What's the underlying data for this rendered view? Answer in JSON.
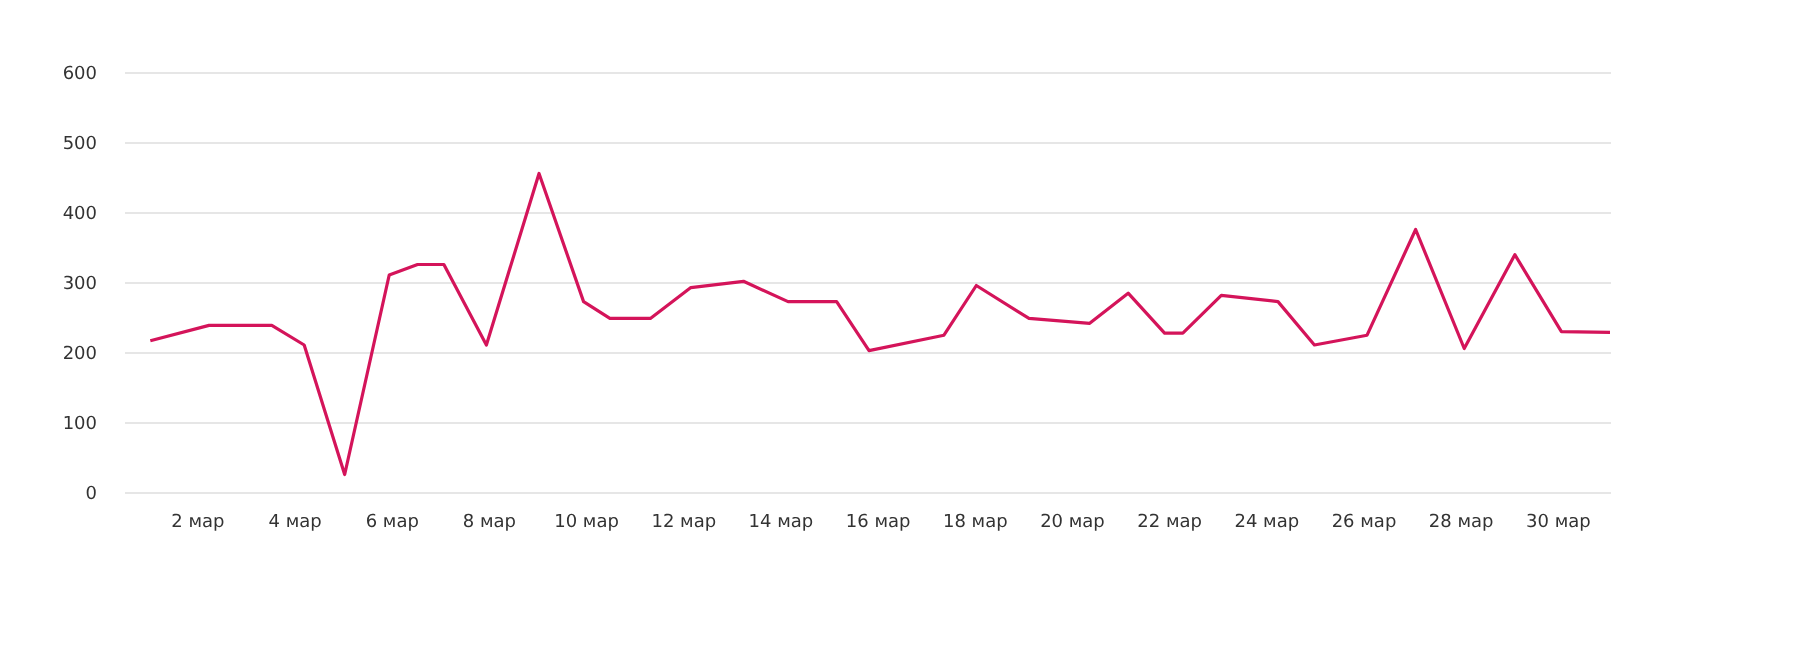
{
  "chart_data": {
    "type": "line",
    "x": [
      "--03-01T01:00",
      "--03-02T06:00",
      "--03-03T13:00",
      "--03-04T05:00",
      "--03-05T01:00",
      "--03-05T23:00",
      "--03-06T13:00",
      "--03-07T02:00",
      "--03-07T23:00",
      "--03-09T01:00",
      "--03-09T23:00",
      "--03-10T12:00",
      "--03-11T08:00",
      "--03-12T04:00",
      "--03-13T06:00",
      "--03-14T04:00",
      "--03-15T04:00",
      "--03-15T20:00",
      "--03-17T09:00",
      "--03-18T01:00",
      "--03-19T03:00",
      "--03-20T09:00",
      "--03-21T04:00",
      "--03-21T22:00",
      "--03-22T07:00",
      "--03-23T02:00",
      "--03-24T06:00",
      "--03-25T00:00",
      "--03-26T02:00",
      "--03-27T02:00",
      "--03-28T02:00",
      "--03-29T03:00",
      "--03-30T02:00",
      "--03-31T02:00"
    ],
    "series": [
      {
        "color": "#d4145a",
        "values": [
          216,
          238,
          238,
          210,
          25,
          310,
          325,
          325,
          210,
          455,
          272,
          248,
          248,
          292,
          301,
          272,
          272,
          202,
          224,
          295,
          248,
          241,
          284,
          227,
          227,
          281,
          272,
          210,
          224,
          375,
          205,
          339,
          229,
          228
        ]
      }
    ],
    "xticks": [
      {
        "value": "--03-02T00:00",
        "label": "2 мар"
      },
      {
        "value": "--03-04T00:00",
        "label": "4 мар"
      },
      {
        "value": "--03-06T00:00",
        "label": "6 мар"
      },
      {
        "value": "--03-08T00:00",
        "label": "8 мар"
      },
      {
        "value": "--03-10T00:00",
        "label": "10 мар"
      },
      {
        "value": "--03-12T00:00",
        "label": "12 мар"
      },
      {
        "value": "--03-14T00:00",
        "label": "14 мар"
      },
      {
        "value": "--03-16T00:00",
        "label": "16 мар"
      },
      {
        "value": "--03-18T00:00",
        "label": "18 мар"
      },
      {
        "value": "--03-20T00:00",
        "label": "20 мар"
      },
      {
        "value": "--03-22T00:00",
        "label": "22 мар"
      },
      {
        "value": "--03-24T00:00",
        "label": "24 мар"
      },
      {
        "value": "--03-26T00:00",
        "label": "26 мар"
      },
      {
        "value": "--03-28T00:00",
        "label": "28 мар"
      },
      {
        "value": "--03-30T00:00",
        "label": "30 мар"
      }
    ],
    "xlim": [
      "--02-28T12:00",
      "--03-31T02:00"
    ],
    "ylim": [
      0,
      600
    ],
    "yticks": [
      0,
      100,
      200,
      300,
      400,
      500,
      600
    ],
    "grid": "y",
    "line_style": "solid"
  }
}
